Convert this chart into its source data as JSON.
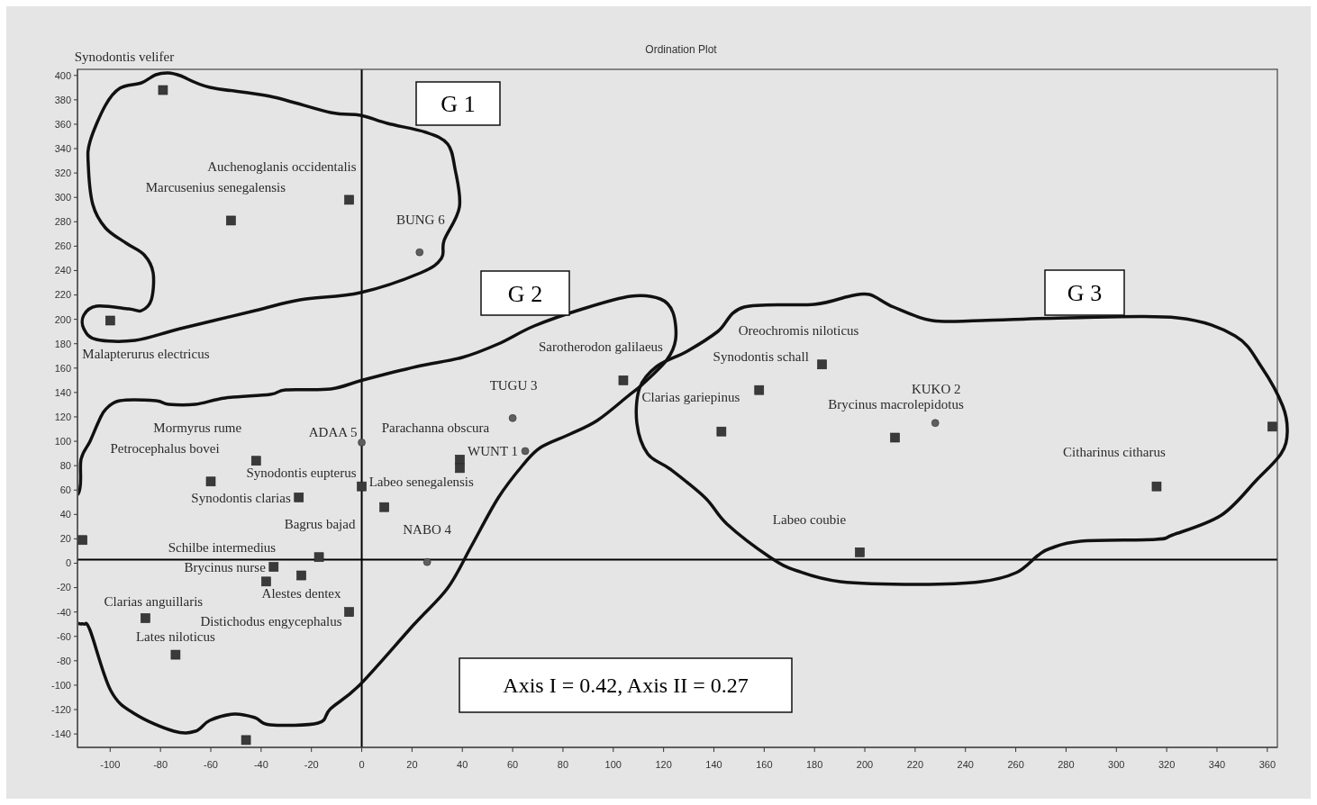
{
  "chart_data": {
    "type": "scatter",
    "title": "Ordination Plot",
    "xlim": [
      -113,
      364
    ],
    "xticks": [
      -100,
      -80,
      -60,
      -40,
      -20,
      0,
      20,
      40,
      60,
      80,
      100,
      120,
      140,
      160,
      180,
      200,
      220,
      240,
      260,
      280,
      300,
      320,
      340,
      360
    ],
    "ylim": [
      -151,
      405
    ],
    "yticks": [
      -140,
      -120,
      -100,
      -80,
      -60,
      -40,
      -20,
      0,
      20,
      40,
      60,
      80,
      100,
      120,
      140,
      160,
      180,
      200,
      220,
      240,
      260,
      280,
      300,
      320,
      340,
      360,
      380,
      400
    ],
    "series": [
      {
        "color": "#3a3a3a",
        "marker": "square",
        "x": [
          -79,
          -52,
          -5,
          -100,
          -42,
          -60,
          -25,
          0,
          9,
          39,
          39,
          104,
          -17,
          -35,
          -24,
          -38,
          -5,
          -86,
          -74,
          -46,
          -111,
          183,
          158,
          143,
          212,
          316,
          198,
          362
        ],
        "values": [
          388,
          281,
          298,
          199,
          84,
          67,
          54,
          63,
          46,
          85,
          78,
          150,
          5,
          -3,
          -10,
          -15,
          -40,
          -45,
          -75,
          -145,
          19,
          163,
          142,
          108,
          103,
          63,
          9,
          112
        ]
      },
      {
        "color": "#5e5e5e",
        "marker": "circle",
        "x": [
          23,
          0,
          60,
          65,
          26,
          228
        ],
        "values": [
          255,
          99,
          119,
          92,
          1,
          115
        ]
      }
    ],
    "ref_lines": [
      {
        "axis": "x",
        "value": 0,
        "color": "#000000"
      },
      {
        "axis": "y",
        "value": 3,
        "color": "#000000"
      }
    ],
    "annotations": [
      "G 1",
      "G 2",
      "G 3",
      "Axis I = 0.42, Axis II = 0.27",
      {
        "text": "Synodontis velifer",
        "x": -79,
        "y": 388
      },
      {
        "text": "Marcusenius senegalensis",
        "x": -52,
        "y": 281
      },
      {
        "text": "Auchenoglanis occidentalis",
        "x": -5,
        "y": 298
      },
      {
        "text": "Malapterurus electricus",
        "x": -100,
        "y": 199
      },
      {
        "text": "BUNG 6",
        "x": 23,
        "y": 255
      },
      {
        "text": "Mormyrus rume",
        "x": -42,
        "y": 84
      },
      {
        "text": "Petrocephalus bovei",
        "x": -60,
        "y": 67
      },
      {
        "text": "Synodontis clarias",
        "x": -25,
        "y": 54
      },
      {
        "text": "Synodontis eupterus",
        "x": 0,
        "y": 63
      },
      {
        "text": "Labeo senegalensis",
        "x": 9,
        "y": 46
      },
      {
        "text": "ADAA 5",
        "x": 0,
        "y": 99
      },
      {
        "text": "Parachanna obscura",
        "x": 39,
        "y": 85
      },
      {
        "text": "TUGU 3",
        "x": 60,
        "y": 119
      },
      {
        "text": "WUNT 1",
        "x": 65,
        "y": 92
      },
      {
        "text": "Sarotherodon galilaeus",
        "x": 104,
        "y": 150
      },
      {
        "text": "Bagrus bajad",
        "x": -17,
        "y": 5
      },
      {
        "text": "Brycinus nurse",
        "x": -35,
        "y": -3
      },
      {
        "text": "Alestes dentex",
        "x": -24,
        "y": -10
      },
      {
        "text": "Schilbe intermedius",
        "x": -38,
        "y": -15
      },
      {
        "text": "Distichodus engycephalus",
        "x": -5,
        "y": -40
      },
      {
        "text": "NABO 4",
        "x": 26,
        "y": 1
      },
      {
        "text": "Clarias anguillaris",
        "x": -86,
        "y": -45
      },
      {
        "text": "Lates niloticus",
        "x": -74,
        "y": -75
      },
      {
        "text": "Oreochromis niloticus",
        "x": 183,
        "y": 163
      },
      {
        "text": "Synodontis schall",
        "x": 158,
        "y": 142
      },
      {
        "text": "Clarias gariepinus",
        "x": 143,
        "y": 108
      },
      {
        "text": "KUKO 2",
        "x": 228,
        "y": 115
      },
      {
        "text": "Brycinus macrolepidotus",
        "x": 212,
        "y": 103
      },
      {
        "text": "Citharinus citharus",
        "x": 316,
        "y": 63
      },
      {
        "text": "Labeo coubie",
        "x": 198,
        "y": 9
      }
    ]
  }
}
